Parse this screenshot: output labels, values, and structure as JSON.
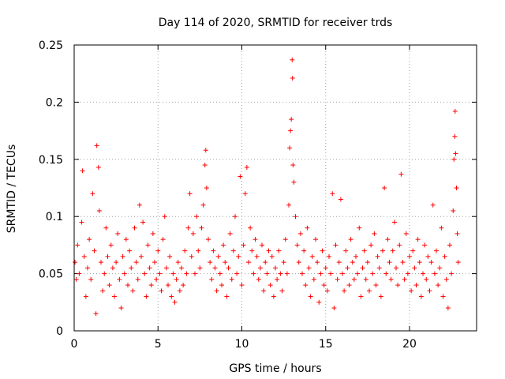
{
  "chart_data": {
    "type": "scatter",
    "title": "Day 114 of 2020, SRMTID for receiver trds",
    "xlabel": "GPS time / hours",
    "ylabel": "SRMTID / TECUs",
    "xlim": [
      0,
      24
    ],
    "ylim": [
      0,
      0.25
    ],
    "grid": true,
    "marker": "+",
    "color": "#ff0000",
    "xticks": [
      0,
      5,
      10,
      15,
      20
    ],
    "xtick_labels": [
      "0",
      "5",
      "10",
      "15",
      "20"
    ],
    "yticks": [
      0,
      0.05,
      0.1,
      0.15,
      0.2,
      0.25
    ],
    "ytick_labels": [
      "0",
      "0.05",
      "0.1",
      "0.15",
      "0.2",
      "0.25"
    ],
    "series": [
      {
        "name": "SRMTID",
        "points": [
          [
            0.05,
            0.06
          ],
          [
            0.12,
            0.045
          ],
          [
            0.2,
            0.075
          ],
          [
            0.3,
            0.05
          ],
          [
            0.45,
            0.095
          ],
          [
            0.5,
            0.14
          ],
          [
            0.6,
            0.065
          ],
          [
            0.7,
            0.03
          ],
          [
            0.8,
            0.055
          ],
          [
            0.9,
            0.08
          ],
          [
            1.0,
            0.045
          ],
          [
            1.1,
            0.12
          ],
          [
            1.2,
            0.07
          ],
          [
            1.3,
            0.015
          ],
          [
            1.35,
            0.162
          ],
          [
            1.45,
            0.143
          ],
          [
            1.5,
            0.105
          ],
          [
            1.6,
            0.06
          ],
          [
            1.7,
            0.035
          ],
          [
            1.8,
            0.05
          ],
          [
            1.9,
            0.09
          ],
          [
            2.0,
            0.065
          ],
          [
            2.1,
            0.04
          ],
          [
            2.2,
            0.075
          ],
          [
            2.3,
            0.055
          ],
          [
            2.4,
            0.03
          ],
          [
            2.5,
            0.06
          ],
          [
            2.6,
            0.085
          ],
          [
            2.7,
            0.045
          ],
          [
            2.8,
            0.02
          ],
          [
            2.9,
            0.065
          ],
          [
            3.0,
            0.05
          ],
          [
            3.1,
            0.08
          ],
          [
            3.2,
            0.04
          ],
          [
            3.3,
            0.07
          ],
          [
            3.4,
            0.055
          ],
          [
            3.5,
            0.035
          ],
          [
            3.6,
            0.09
          ],
          [
            3.7,
            0.06
          ],
          [
            3.8,
            0.045
          ],
          [
            3.9,
            0.11
          ],
          [
            4.0,
            0.065
          ],
          [
            4.1,
            0.095
          ],
          [
            4.2,
            0.05
          ],
          [
            4.3,
            0.03
          ],
          [
            4.4,
            0.075
          ],
          [
            4.5,
            0.055
          ],
          [
            4.6,
            0.04
          ],
          [
            4.7,
            0.085
          ],
          [
            4.8,
            0.06
          ],
          [
            4.9,
            0.045
          ],
          [
            5.0,
            0.07
          ],
          [
            5.1,
            0.05
          ],
          [
            5.2,
            0.035
          ],
          [
            5.3,
            0.08
          ],
          [
            5.4,
            0.1
          ],
          [
            5.5,
            0.055
          ],
          [
            5.6,
            0.04
          ],
          [
            5.7,
            0.065
          ],
          [
            5.8,
            0.03
          ],
          [
            5.9,
            0.05
          ],
          [
            6.0,
            0.025
          ],
          [
            6.1,
            0.045
          ],
          [
            6.2,
            0.06
          ],
          [
            6.3,
            0.035
          ],
          [
            6.4,
            0.055
          ],
          [
            6.5,
            0.04
          ],
          [
            6.6,
            0.07
          ],
          [
            6.7,
            0.05
          ],
          [
            6.8,
            0.09
          ],
          [
            6.9,
            0.12
          ],
          [
            7.0,
            0.065
          ],
          [
            7.1,
            0.085
          ],
          [
            7.2,
            0.05
          ],
          [
            7.3,
            0.1
          ],
          [
            7.4,
            0.07
          ],
          [
            7.5,
            0.055
          ],
          [
            7.6,
            0.09
          ],
          [
            7.7,
            0.11
          ],
          [
            7.8,
            0.145
          ],
          [
            7.85,
            0.158
          ],
          [
            7.9,
            0.125
          ],
          [
            8.0,
            0.08
          ],
          [
            8.1,
            0.06
          ],
          [
            8.2,
            0.045
          ],
          [
            8.3,
            0.07
          ],
          [
            8.4,
            0.055
          ],
          [
            8.5,
            0.035
          ],
          [
            8.6,
            0.065
          ],
          [
            8.7,
            0.05
          ],
          [
            8.8,
            0.04
          ],
          [
            8.9,
            0.075
          ],
          [
            9.0,
            0.06
          ],
          [
            9.1,
            0.03
          ],
          [
            9.2,
            0.055
          ],
          [
            9.3,
            0.085
          ],
          [
            9.4,
            0.045
          ],
          [
            9.5,
            0.07
          ],
          [
            9.6,
            0.1
          ],
          [
            9.7,
            0.05
          ],
          [
            9.8,
            0.065
          ],
          [
            9.9,
            0.135
          ],
          [
            10.0,
            0.04
          ],
          [
            10.1,
            0.075
          ],
          [
            10.2,
            0.12
          ],
          [
            10.3,
            0.143
          ],
          [
            10.4,
            0.06
          ],
          [
            10.5,
            0.09
          ],
          [
            10.6,
            0.07
          ],
          [
            10.7,
            0.05
          ],
          [
            10.8,
            0.08
          ],
          [
            10.9,
            0.065
          ],
          [
            11.0,
            0.045
          ],
          [
            11.1,
            0.055
          ],
          [
            11.2,
            0.075
          ],
          [
            11.3,
            0.035
          ],
          [
            11.4,
            0.06
          ],
          [
            11.5,
            0.05
          ],
          [
            11.6,
            0.07
          ],
          [
            11.7,
            0.04
          ],
          [
            11.8,
            0.065
          ],
          [
            11.9,
            0.03
          ],
          [
            12.0,
            0.055
          ],
          [
            12.1,
            0.045
          ],
          [
            12.2,
            0.07
          ],
          [
            12.3,
            0.05
          ],
          [
            12.4,
            0.035
          ],
          [
            12.5,
            0.06
          ],
          [
            12.6,
            0.08
          ],
          [
            12.7,
            0.05
          ],
          [
            12.8,
            0.11
          ],
          [
            12.85,
            0.16
          ],
          [
            12.9,
            0.175
          ],
          [
            12.95,
            0.185
          ],
          [
            13.0,
            0.237
          ],
          [
            13.02,
            0.221
          ],
          [
            13.05,
            0.145
          ],
          [
            13.1,
            0.13
          ],
          [
            13.2,
            0.1
          ],
          [
            13.3,
            0.075
          ],
          [
            13.4,
            0.06
          ],
          [
            13.5,
            0.085
          ],
          [
            13.6,
            0.05
          ],
          [
            13.7,
            0.07
          ],
          [
            13.8,
            0.04
          ],
          [
            13.9,
            0.09
          ],
          [
            14.0,
            0.055
          ],
          [
            14.1,
            0.03
          ],
          [
            14.2,
            0.065
          ],
          [
            14.3,
            0.045
          ],
          [
            14.4,
            0.08
          ],
          [
            14.5,
            0.06
          ],
          [
            14.6,
            0.025
          ],
          [
            14.7,
            0.05
          ],
          [
            14.8,
            0.07
          ],
          [
            14.9,
            0.04
          ],
          [
            15.0,
            0.055
          ],
          [
            15.1,
            0.035
          ],
          [
            15.2,
            0.065
          ],
          [
            15.3,
            0.05
          ],
          [
            15.4,
            0.12
          ],
          [
            15.5,
            0.02
          ],
          [
            15.6,
            0.075
          ],
          [
            15.7,
            0.045
          ],
          [
            15.8,
            0.06
          ],
          [
            15.9,
            0.115
          ],
          [
            16.0,
            0.05
          ],
          [
            16.1,
            0.035
          ],
          [
            16.2,
            0.07
          ],
          [
            16.3,
            0.055
          ],
          [
            16.4,
            0.04
          ],
          [
            16.5,
            0.08
          ],
          [
            16.6,
            0.06
          ],
          [
            16.7,
            0.045
          ],
          [
            16.8,
            0.065
          ],
          [
            16.9,
            0.05
          ],
          [
            17.0,
            0.09
          ],
          [
            17.1,
            0.03
          ],
          [
            17.2,
            0.055
          ],
          [
            17.3,
            0.07
          ],
          [
            17.4,
            0.045
          ],
          [
            17.5,
            0.06
          ],
          [
            17.6,
            0.035
          ],
          [
            17.7,
            0.075
          ],
          [
            17.8,
            0.05
          ],
          [
            17.9,
            0.085
          ],
          [
            18.0,
            0.04
          ],
          [
            18.1,
            0.065
          ],
          [
            18.2,
            0.055
          ],
          [
            18.3,
            0.03
          ],
          [
            18.4,
            0.07
          ],
          [
            18.5,
            0.125
          ],
          [
            18.6,
            0.05
          ],
          [
            18.7,
            0.08
          ],
          [
            18.8,
            0.06
          ],
          [
            18.9,
            0.045
          ],
          [
            19.0,
            0.07
          ],
          [
            19.1,
            0.095
          ],
          [
            19.2,
            0.055
          ],
          [
            19.3,
            0.04
          ],
          [
            19.4,
            0.075
          ],
          [
            19.5,
            0.137
          ],
          [
            19.6,
            0.06
          ],
          [
            19.7,
            0.045
          ],
          [
            19.8,
            0.085
          ],
          [
            19.9,
            0.05
          ],
          [
            20.0,
            0.065
          ],
          [
            20.1,
            0.035
          ],
          [
            20.2,
            0.07
          ],
          [
            20.3,
            0.055
          ],
          [
            20.4,
            0.04
          ],
          [
            20.5,
            0.08
          ],
          [
            20.6,
            0.06
          ],
          [
            20.7,
            0.03
          ],
          [
            20.8,
            0.05
          ],
          [
            20.9,
            0.075
          ],
          [
            21.0,
            0.045
          ],
          [
            21.1,
            0.065
          ],
          [
            21.2,
            0.035
          ],
          [
            21.3,
            0.06
          ],
          [
            21.4,
            0.11
          ],
          [
            21.5,
            0.05
          ],
          [
            21.6,
            0.07
          ],
          [
            21.7,
            0.04
          ],
          [
            21.8,
            0.055
          ],
          [
            21.9,
            0.09
          ],
          [
            22.0,
            0.03
          ],
          [
            22.1,
            0.065
          ],
          [
            22.2,
            0.045
          ],
          [
            22.3,
            0.02
          ],
          [
            22.4,
            0.075
          ],
          [
            22.5,
            0.05
          ],
          [
            22.6,
            0.105
          ],
          [
            22.65,
            0.15
          ],
          [
            22.7,
            0.17
          ],
          [
            22.72,
            0.192
          ],
          [
            22.75,
            0.155
          ],
          [
            22.8,
            0.125
          ],
          [
            22.85,
            0.085
          ],
          [
            22.9,
            0.06
          ]
        ]
      }
    ]
  }
}
